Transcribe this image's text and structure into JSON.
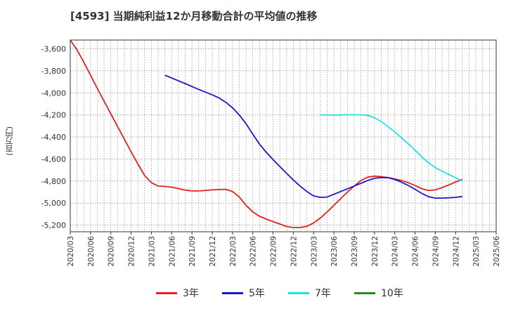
{
  "chart_data": {
    "type": "line",
    "title": "[4593]  当期純利益12か月移動合計の平均値の推移",
    "xlabel": "",
    "ylabel": "(百万円)",
    "ylim": [
      -5260,
      -3520
    ],
    "yticks": [
      -3600,
      -3800,
      -4000,
      -4200,
      -4400,
      -4600,
      -4800,
      -5000,
      -5200
    ],
    "ytick_labels": [
      "-3,600",
      "-3,800",
      "-4,000",
      "-4,200",
      "-4,400",
      "-4,600",
      "-4,800",
      "-5,000",
      "-5,200"
    ],
    "xtick_labels": [
      "2020/03",
      "2020/06",
      "2020/09",
      "2020/12",
      "2021/03",
      "2021/06",
      "2021/09",
      "2021/12",
      "2022/03",
      "2022/06",
      "2022/09",
      "2022/12",
      "2023/03",
      "2023/06",
      "2023/09",
      "2023/12",
      "2024/03",
      "2024/06",
      "2024/09",
      "2024/12",
      "2025/03",
      "2025/06"
    ],
    "grid": true,
    "legend_position": "bottom",
    "series": [
      {
        "name": "3年",
        "color": "#dd2222",
        "points": [
          [
            0,
            -3520
          ],
          [
            1,
            -3610
          ],
          [
            2,
            -3720
          ],
          [
            3,
            -3840
          ],
          [
            4,
            -3960
          ],
          [
            5,
            -4075
          ],
          [
            6,
            -4190
          ],
          [
            7,
            -4305
          ],
          [
            8,
            -4420
          ],
          [
            9,
            -4535
          ],
          [
            10,
            -4645
          ],
          [
            11,
            -4750
          ],
          [
            12,
            -4815
          ],
          [
            13,
            -4845
          ],
          [
            14,
            -4848
          ],
          [
            15,
            -4855
          ],
          [
            16,
            -4868
          ],
          [
            17,
            -4882
          ],
          [
            18,
            -4890
          ],
          [
            19,
            -4890
          ],
          [
            20,
            -4885
          ],
          [
            21,
            -4880
          ],
          [
            22,
            -4877
          ],
          [
            23,
            -4875
          ],
          [
            24,
            -4895
          ],
          [
            25,
            -4945
          ],
          [
            26,
            -5020
          ],
          [
            27,
            -5080
          ],
          [
            28,
            -5120
          ],
          [
            29,
            -5145
          ],
          [
            30,
            -5168
          ],
          [
            31,
            -5190
          ],
          [
            32,
            -5212
          ],
          [
            33,
            -5222
          ],
          [
            34,
            -5222
          ],
          [
            35,
            -5210
          ],
          [
            36,
            -5180
          ],
          [
            37,
            -5135
          ],
          [
            38,
            -5080
          ],
          [
            39,
            -5020
          ],
          [
            40,
            -4960
          ],
          [
            41,
            -4900
          ],
          [
            42,
            -4845
          ],
          [
            43,
            -4795
          ],
          [
            44,
            -4765
          ],
          [
            45,
            -4755
          ],
          [
            46,
            -4760
          ],
          [
            47,
            -4768
          ],
          [
            48,
            -4780
          ],
          [
            49,
            -4795
          ],
          [
            50,
            -4815
          ],
          [
            51,
            -4840
          ],
          [
            52,
            -4870
          ],
          [
            53,
            -4885
          ],
          [
            54,
            -4880
          ],
          [
            55,
            -4860
          ],
          [
            56,
            -4835
          ],
          [
            57,
            -4808
          ],
          [
            58,
            -4785
          ]
        ]
      },
      {
        "name": "5年",
        "color": "#1a1acc",
        "points": [
          [
            14,
            -3840
          ],
          [
            15,
            -3865
          ],
          [
            16,
            -3890
          ],
          [
            17,
            -3915
          ],
          [
            18,
            -3942
          ],
          [
            19,
            -3968
          ],
          [
            20,
            -3993
          ],
          [
            21,
            -4018
          ],
          [
            22,
            -4045
          ],
          [
            23,
            -4085
          ],
          [
            24,
            -4135
          ],
          [
            25,
            -4200
          ],
          [
            26,
            -4280
          ],
          [
            27,
            -4375
          ],
          [
            28,
            -4465
          ],
          [
            29,
            -4540
          ],
          [
            30,
            -4605
          ],
          [
            31,
            -4668
          ],
          [
            32,
            -4730
          ],
          [
            33,
            -4790
          ],
          [
            34,
            -4845
          ],
          [
            35,
            -4895
          ],
          [
            36,
            -4935
          ],
          [
            37,
            -4948
          ],
          [
            38,
            -4945
          ],
          [
            39,
            -4920
          ],
          [
            40,
            -4895
          ],
          [
            41,
            -4870
          ],
          [
            42,
            -4845
          ],
          [
            43,
            -4820
          ],
          [
            44,
            -4795
          ],
          [
            45,
            -4775
          ],
          [
            46,
            -4768
          ],
          [
            47,
            -4770
          ],
          [
            48,
            -4785
          ],
          [
            49,
            -4810
          ],
          [
            50,
            -4840
          ],
          [
            51,
            -4875
          ],
          [
            52,
            -4912
          ],
          [
            53,
            -4942
          ],
          [
            54,
            -4955
          ],
          [
            55,
            -4955
          ],
          [
            56,
            -4952
          ],
          [
            57,
            -4948
          ],
          [
            58,
            -4940
          ]
        ]
      },
      {
        "name": "7年",
        "color": "#22e0e0",
        "points": [
          [
            37,
            -4200
          ],
          [
            38,
            -4200
          ],
          [
            39,
            -4202
          ],
          [
            40,
            -4200
          ],
          [
            41,
            -4198
          ],
          [
            42,
            -4198
          ],
          [
            43,
            -4198
          ],
          [
            44,
            -4205
          ],
          [
            45,
            -4225
          ],
          [
            46,
            -4260
          ],
          [
            47,
            -4305
          ],
          [
            48,
            -4355
          ],
          [
            49,
            -4408
          ],
          [
            50,
            -4462
          ],
          [
            51,
            -4520
          ],
          [
            52,
            -4580
          ],
          [
            53,
            -4635
          ],
          [
            54,
            -4678
          ],
          [
            55,
            -4710
          ],
          [
            56,
            -4740
          ],
          [
            57,
            -4770
          ],
          [
            58,
            -4800
          ]
        ]
      },
      {
        "name": "10年",
        "color": "#228b22",
        "points": []
      }
    ]
  }
}
